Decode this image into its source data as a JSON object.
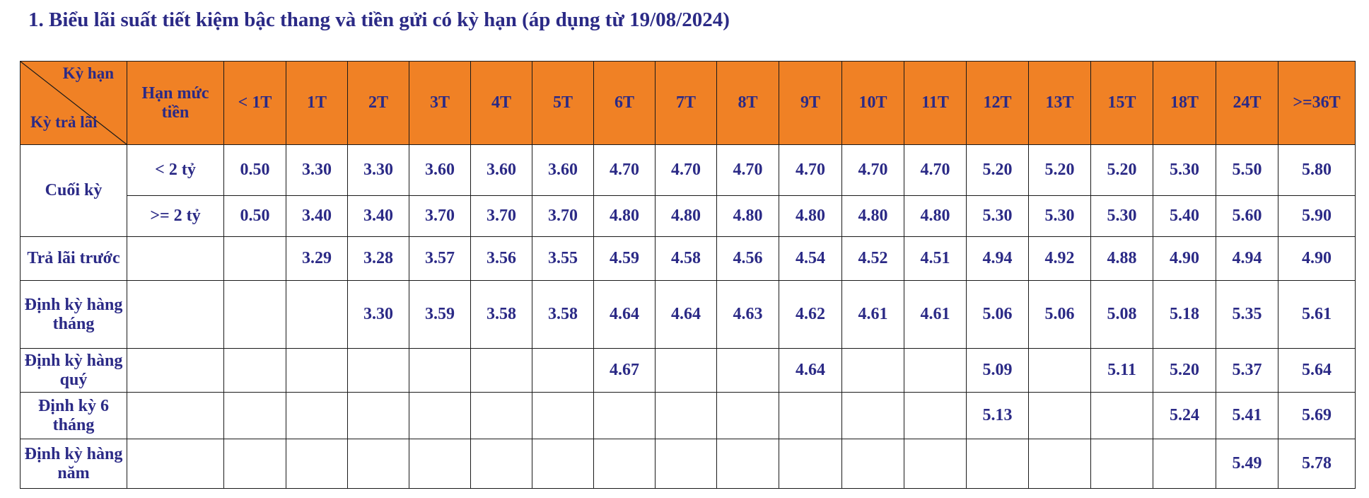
{
  "title": "1.   Biểu lãi suất tiết kiệm bậc thang và tiền gửi có kỳ hạn (áp dụng từ 19/08/2024)",
  "header": {
    "corner_top": "Kỳ hạn",
    "corner_bottom": "Kỳ trả lãi",
    "limit_col": "Hạn mức tiền",
    "terms": [
      "< 1T",
      "1T",
      "2T",
      "3T",
      "4T",
      "5T",
      "6T",
      "7T",
      "8T",
      "9T",
      "10T",
      "11T",
      "12T",
      "13T",
      "15T",
      "18T",
      "24T",
      ">=36T"
    ]
  },
  "rows": [
    {
      "label": "Cuối kỳ",
      "limit": "< 2 tỷ",
      "values": [
        "0.50",
        "3.30",
        "3.30",
        "3.60",
        "3.60",
        "3.60",
        "4.70",
        "4.70",
        "4.70",
        "4.70",
        "4.70",
        "4.70",
        "5.20",
        "5.20",
        "5.20",
        "5.30",
        "5.50",
        "5.80"
      ]
    },
    {
      "label": "",
      "limit": ">= 2 tỷ",
      "values": [
        "0.50",
        "3.40",
        "3.40",
        "3.70",
        "3.70",
        "3.70",
        "4.80",
        "4.80",
        "4.80",
        "4.80",
        "4.80",
        "4.80",
        "5.30",
        "5.30",
        "5.30",
        "5.40",
        "5.60",
        "5.90"
      ]
    },
    {
      "label": "Trả lãi trước",
      "limit": "",
      "values": [
        "",
        "3.29",
        "3.28",
        "3.57",
        "3.56",
        "3.55",
        "4.59",
        "4.58",
        "4.56",
        "4.54",
        "4.52",
        "4.51",
        "4.94",
        "4.92",
        "4.88",
        "4.90",
        "4.94",
        "4.90"
      ]
    },
    {
      "label": "Định kỳ hàng tháng",
      "limit": "",
      "values": [
        "",
        "",
        "3.30",
        "3.59",
        "3.58",
        "3.58",
        "4.64",
        "4.64",
        "4.63",
        "4.62",
        "4.61",
        "4.61",
        "5.06",
        "5.06",
        "5.08",
        "5.18",
        "5.35",
        "5.61"
      ]
    },
    {
      "label": "Định kỳ hàng quý",
      "limit": "",
      "values": [
        "",
        "",
        "",
        "",
        "",
        "",
        "4.67",
        "",
        "",
        "4.64",
        "",
        "",
        "5.09",
        "",
        "5.11",
        "5.20",
        "5.37",
        "5.64"
      ]
    },
    {
      "label": "Định kỳ 6 tháng",
      "limit": "",
      "values": [
        "",
        "",
        "",
        "",
        "",
        "",
        "",
        "",
        "",
        "",
        "",
        "",
        "5.13",
        "",
        "",
        "5.24",
        "5.41",
        "5.69"
      ]
    },
    {
      "label": "Định kỳ hàng năm",
      "limit": "",
      "values": [
        "",
        "",
        "",
        "",
        "",
        "",
        "",
        "",
        "",
        "",
        "",
        "",
        "",
        "",
        "",
        "",
        "5.49",
        "5.78"
      ]
    }
  ]
}
